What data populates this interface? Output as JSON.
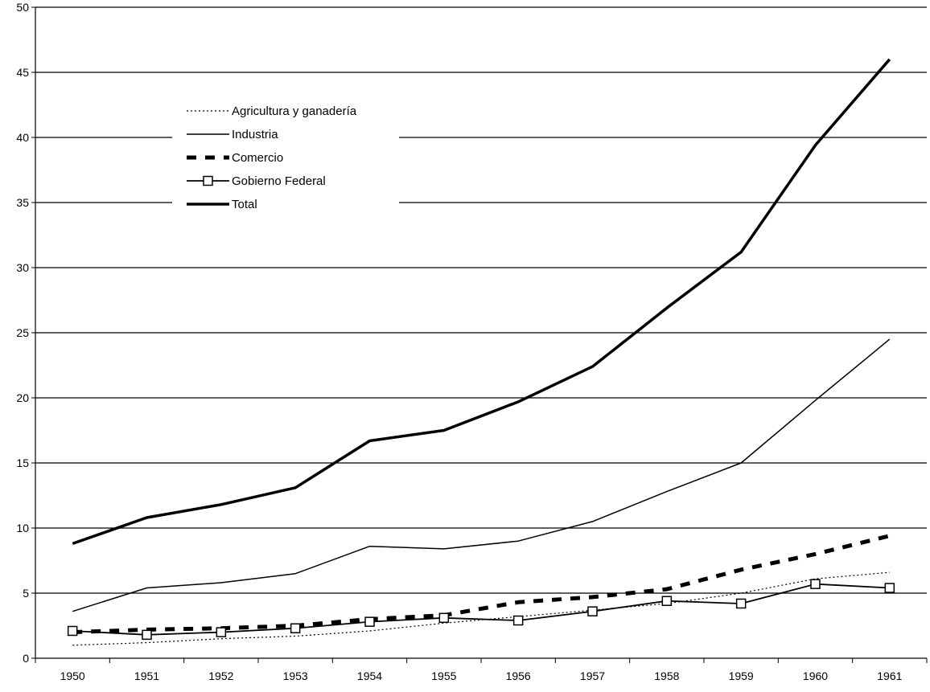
{
  "chart_data": {
    "type": "line",
    "title": "",
    "xlabel": "",
    "ylabel": "",
    "ylim": [
      0,
      50
    ],
    "y_ticks": [
      "0",
      "5",
      "10",
      "15",
      "20",
      "25",
      "30",
      "35",
      "40",
      "45",
      "50"
    ],
    "categories": [
      "1950",
      "1951",
      "1952",
      "1953",
      "1954",
      "1955",
      "1956",
      "1957",
      "1958",
      "1959",
      "1960",
      "1961"
    ],
    "grid": "horizontal",
    "legend_position": "top-left",
    "series": [
      {
        "name": "Agricultura y ganadería",
        "style": "dotted",
        "color": "#000000",
        "values": [
          1.0,
          1.2,
          1.5,
          1.7,
          2.1,
          2.7,
          3.2,
          3.7,
          4.2,
          5.0,
          6.1,
          6.6
        ]
      },
      {
        "name": "Industria",
        "style": "thin-solid",
        "color": "#000000",
        "values": [
          3.6,
          5.4,
          5.8,
          6.5,
          8.6,
          8.4,
          9.0,
          10.5,
          12.8,
          15.0,
          19.8,
          24.5
        ]
      },
      {
        "name": "Comercio",
        "style": "thick-dashed",
        "color": "#000000",
        "values": [
          2.0,
          2.2,
          2.3,
          2.5,
          3.0,
          3.3,
          4.3,
          4.7,
          5.3,
          6.8,
          8.0,
          9.4
        ]
      },
      {
        "name": "Gobierno Federal",
        "style": "solid-square-markers",
        "color": "#000000",
        "values": [
          2.1,
          1.8,
          2.0,
          2.3,
          2.8,
          3.1,
          2.9,
          3.6,
          4.4,
          4.2,
          5.7,
          5.4
        ]
      },
      {
        "name": "Total",
        "style": "thick-solid",
        "color": "#000000",
        "values": [
          8.8,
          10.8,
          11.8,
          13.1,
          16.7,
          17.5,
          19.7,
          22.4,
          26.9,
          31.2,
          39.4,
          46.0
        ]
      }
    ]
  }
}
